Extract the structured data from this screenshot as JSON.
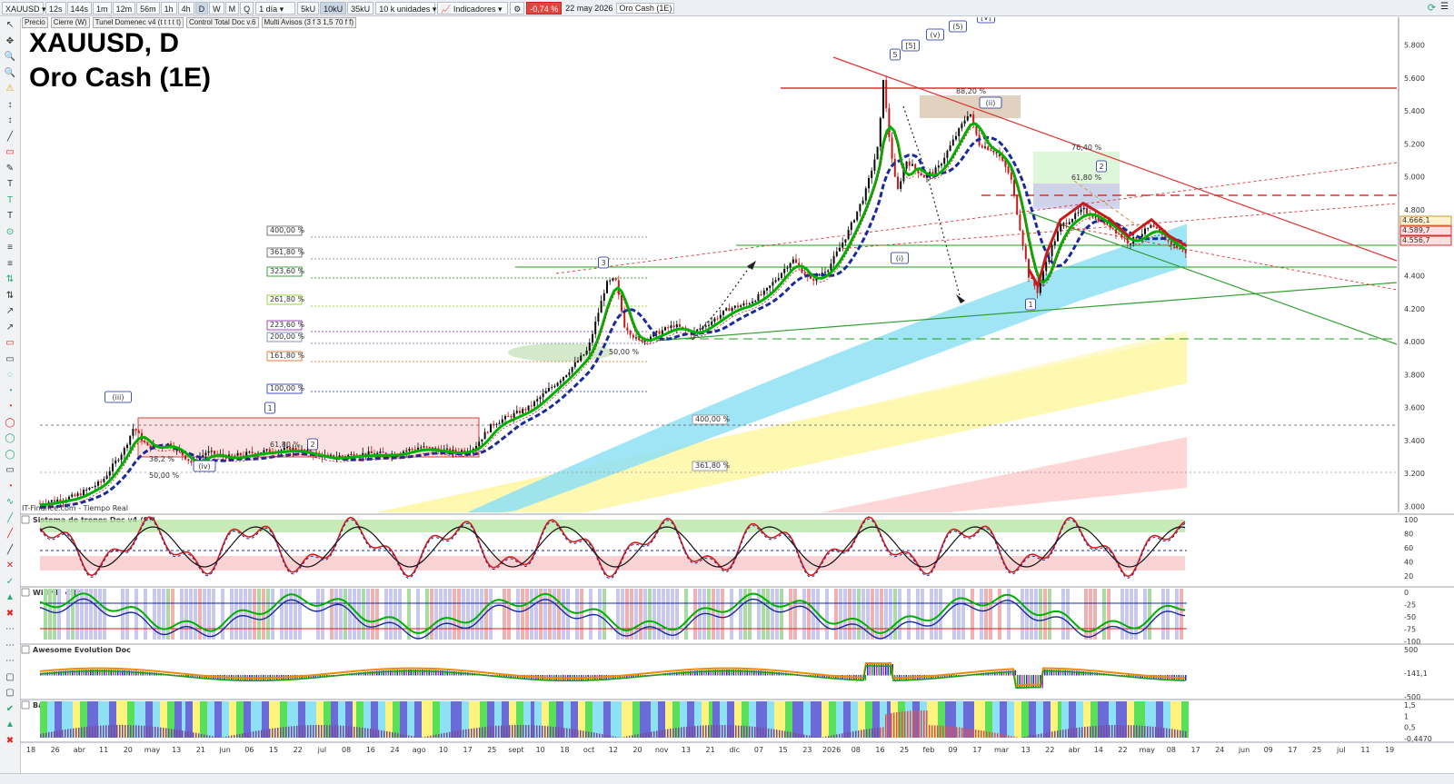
{
  "toolbar": {
    "symbol": "XAUUSD",
    "intervals": [
      "12s",
      "144s",
      "1m",
      "12m",
      "56m",
      "1h",
      "4h",
      "D",
      "W",
      "M",
      "Q"
    ],
    "period": "1 día",
    "units": [
      "5kU",
      "10kU",
      "35kU"
    ],
    "unit_mode": "10 k unidades",
    "indicators_label": "Indicadores",
    "change": "-0,74 %",
    "date": "22 may 2026",
    "instrument_name": "Oro Cash (1E)"
  },
  "legend": {
    "items": [
      "Precio",
      "Cierre (W)",
      "Tunel Domenec v4 (t t t t t)",
      "Control Total Doc v.6",
      "Multi Avisos (3 f 3 1,5 70 f f)"
    ]
  },
  "chart": {
    "title": "XAUUSD, D",
    "subtitle": "Oro Cash (1E)",
    "source": "IT-Finance.com - Tiempo Real",
    "price_axis": [
      "5.800",
      "5.600",
      "5.400",
      "5.200",
      "5.000",
      "4.800",
      "4.600",
      "4.400",
      "4.200",
      "4.000",
      "3.800",
      "3.600",
      "3.400",
      "3.200",
      "3.000"
    ],
    "price_labels": [
      {
        "text": "4.666,1",
        "color": "#cc7a00"
      },
      {
        "text": "4.589,7",
        "color": "#cc0000"
      },
      {
        "text": "4.556,7",
        "color": "#cc0000"
      }
    ],
    "fib_labels_left": [
      {
        "text": "400,00 %",
        "color": "#555555"
      },
      {
        "text": "361,80 %",
        "color": "#555555"
      },
      {
        "text": "323,60 %",
        "color": "#108a10"
      },
      {
        "text": "261,80 %",
        "color": "#7acc00"
      },
      {
        "text": "223,60 %",
        "color": "#8a1aa8"
      },
      {
        "text": "200,00 %",
        "color": "#6677aa"
      },
      {
        "text": "161,80 %",
        "color": "#e06010"
      },
      {
        "text": "100,00 %",
        "color": "#1a2ab0"
      }
    ],
    "fib_labels_mid": [
      "400,00 %",
      "361,80 %"
    ],
    "fib_labels_upper": [
      "88,20 %",
      "76,40 %",
      "61,80 %"
    ],
    "fib_labels_small": [
      "61,80 %",
      "50,00 %",
      "38,2 %",
      "50,00 %"
    ],
    "waves": [
      "(iii)",
      "(iv)",
      "1",
      "2",
      "3",
      "5",
      "[5]",
      "(v)",
      "(5)",
      "[V]",
      "(ii)",
      "2",
      "1",
      "(i)"
    ]
  },
  "x_axis": [
    "18",
    "26",
    "abr",
    "11",
    "20",
    "may",
    "13",
    "21",
    "jun",
    "06",
    "15",
    "22",
    "jul",
    "08",
    "16",
    "24",
    "ago",
    "10",
    "17",
    "25",
    "sept",
    "10",
    "18",
    "oct",
    "12",
    "20",
    "nov",
    "13",
    "21",
    "dic",
    "07",
    "15",
    "23",
    "2026",
    "08",
    "16",
    "25",
    "feb",
    "09",
    "17",
    "mar",
    "13",
    "22",
    "abr",
    "14",
    "22",
    "may",
    "08",
    "17",
    "24",
    "jun",
    "09",
    "17",
    "25",
    "jul",
    "11",
    "19"
  ],
  "panels": [
    {
      "name": "Sistema de trenes Doc v4 (f f)",
      "axis": [
        "100",
        "80",
        "60",
        "40",
        "20"
      ],
      "value": "21,539"
    },
    {
      "name": "Willy Doc (t)",
      "axis": [
        "0",
        "-25",
        "-50",
        "-75",
        "-100"
      ],
      "value": "-75"
    },
    {
      "name": "Awesome Evolution Doc",
      "axis": [
        "500",
        "-141,1",
        "-500"
      ],
      "value": "-141,1"
    },
    {
      "name": "Barra Fuerza Fondo Mercado v4 (f)",
      "axis": [
        "1,5",
        "1",
        "0,5",
        "-0,4470"
      ],
      "value": "-0,4470"
    }
  ],
  "colors": {
    "up": "#00b000",
    "down": "#e00000",
    "accent_blue": "#1a2a9a",
    "cyan_band": "#8ee0f4",
    "yellow_band": "#fff5a0",
    "pink_band": "#ffd0d0"
  }
}
